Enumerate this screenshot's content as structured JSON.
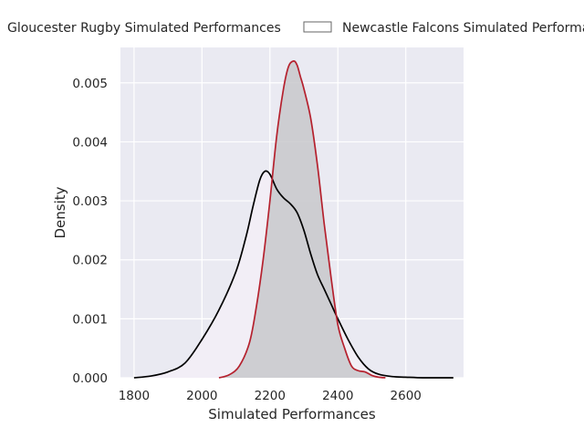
{
  "chart_data": {
    "type": "area",
    "xlabel": "Simulated Performances",
    "ylabel": "Density",
    "xlim": [
      1760,
      2770
    ],
    "ylim": [
      0,
      0.0056
    ],
    "x_ticks": [
      1800,
      2000,
      2200,
      2400,
      2600
    ],
    "x_tick_labels": [
      "1800",
      "2000",
      "2200",
      "2400",
      "2600"
    ],
    "y_ticks": [
      0.0,
      0.001,
      0.002,
      0.003,
      0.004,
      0.005
    ],
    "y_tick_labels": [
      "0.000",
      "0.001",
      "0.002",
      "0.003",
      "0.004",
      "0.005"
    ],
    "grid": true,
    "background": "#eaeaf2",
    "legend_position": "top",
    "series": [
      {
        "name": "Gloucester Rugby Simulated Performances",
        "line_color": "#000000",
        "fill_color": "#f2eef6",
        "x": [
          1800,
          1850,
          1900,
          1950,
          2000,
          2050,
          2100,
          2130,
          2150,
          2170,
          2185,
          2200,
          2220,
          2240,
          2260,
          2280,
          2300,
          2320,
          2340,
          2360,
          2380,
          2400,
          2430,
          2460,
          2490,
          2520,
          2560,
          2600,
          2650,
          2700,
          2740
        ],
        "y": [
          0.0,
          3e-05,
          0.0001,
          0.00025,
          0.00065,
          0.00115,
          0.0018,
          0.0024,
          0.0029,
          0.00335,
          0.0035,
          0.00345,
          0.0032,
          0.00305,
          0.00295,
          0.0028,
          0.0025,
          0.0021,
          0.00175,
          0.0015,
          0.00125,
          0.001,
          0.00065,
          0.00035,
          0.00015,
          6e-05,
          2e-05,
          1e-05,
          0.0,
          0.0,
          0.0
        ]
      },
      {
        "name": "Newcastle Falcons Simulated Performances",
        "line_color": "#b5212e",
        "fill_color": "#c8c8cb",
        "x": [
          2050,
          2080,
          2110,
          2140,
          2160,
          2180,
          2200,
          2220,
          2240,
          2255,
          2270,
          2280,
          2290,
          2300,
          2320,
          2340,
          2360,
          2380,
          2400,
          2420,
          2440,
          2460,
          2480,
          2500,
          2520,
          2540
        ],
        "y": [
          0.0,
          5e-05,
          0.0002,
          0.0006,
          0.0012,
          0.002,
          0.003,
          0.0041,
          0.0049,
          0.00528,
          0.00537,
          0.0053,
          0.0051,
          0.0049,
          0.0044,
          0.0036,
          0.0026,
          0.0017,
          0.0009,
          0.0005,
          0.0002,
          0.00012,
          0.0001,
          4e-05,
          1e-05,
          0.0
        ]
      }
    ]
  }
}
